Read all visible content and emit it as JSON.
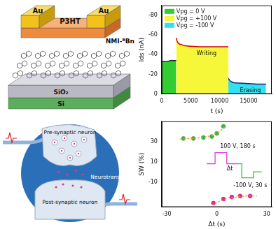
{
  "device_schematic": {
    "top_contacts": [
      "Au",
      "Au"
    ],
    "semiconductor": "P3HT",
    "molecular_layer": "NMI-ᴮBn",
    "dielectric": "SiO₂",
    "substrate": "Si"
  },
  "synapse_diagram": {
    "labels": [
      "Pre-synaptic neuron",
      "Neurotransmitter",
      "Post-synaptic neuron"
    ]
  },
  "chart_data": [
    {
      "type": "area",
      "x_label": "t (s)",
      "y_label": "Ids (nA)",
      "xlim": [
        0,
        19000
      ],
      "xticks": [
        0,
        5000,
        10000,
        15000
      ],
      "ylim": [
        0,
        -90
      ],
      "yticks": [
        -80,
        -60,
        -40,
        -20,
        0
      ],
      "grid": false,
      "legend": "upper left",
      "series": [
        {
          "name": "Vpg = 0 V",
          "color": "#33cc33",
          "x": [
            0,
            500,
            1000,
            1500,
            2000,
            2500
          ],
          "values": [
            -33,
            -33,
            -33,
            -34,
            -34,
            -34
          ]
        },
        {
          "name": "Vpg = +100 V",
          "color": "#f7f73a",
          "x": [
            2500,
            2700,
            3000,
            3500,
            4000,
            5000,
            6500,
            8000,
            10000,
            11500
          ],
          "values": [
            -57,
            -53,
            -51,
            -50,
            -49,
            -48.5,
            -48,
            -48,
            -48,
            -48
          ]
        },
        {
          "name": "Vpg = -100 V",
          "color": "#33e0f0",
          "x": [
            11500,
            11700,
            12000,
            12500,
            13500,
            15000,
            16500,
            18000
          ],
          "values": [
            -16,
            -14,
            -12.5,
            -11.5,
            -11,
            -10.5,
            -10,
            -10
          ]
        }
      ],
      "annotations": [
        {
          "text": "Writing",
          "x": 6000,
          "y": -41
        },
        {
          "text": "Erasing",
          "x": 13500,
          "y": -3
        }
      ]
    },
    {
      "type": "scatter",
      "x_label": "Δt (s)",
      "y_label": "SW (%)",
      "xlim": [
        -33,
        33
      ],
      "xticks": [
        -30,
        0,
        30
      ],
      "ylim": [
        -35,
        50
      ],
      "yticks": [
        -10,
        10,
        30
      ],
      "grid": false,
      "series": [
        {
          "type": "line",
          "line_style": "dashed",
          "color": "#f0a030",
          "x": [
            -22,
            -14,
            -8,
            -3,
            1,
            5
          ],
          "values": [
            32.5,
            33,
            34,
            36,
            39,
            45
          ]
        },
        {
          "type": "line",
          "line_style": "dashed",
          "color": "#f0a030",
          "x": [
            -3,
            2,
            7,
            12,
            18,
            24
          ],
          "values": [
            -33,
            -29,
            -26,
            -25,
            -24,
            -24
          ]
        },
        {
          "type": "scatter",
          "marker": "circle",
          "color": "#3cb043",
          "x": [
            -20,
            -14,
            -8,
            -3,
            0,
            4
          ],
          "values": [
            33,
            33,
            34,
            35,
            38,
            45
          ]
        },
        {
          "type": "scatter",
          "marker": "circle",
          "color": "#e0249a",
          "x": [
            -2,
            4,
            9,
            14,
            20
          ],
          "values": [
            -31,
            -27,
            -25,
            -24,
            -24
          ]
        },
        {
          "type": "line",
          "line_style": "solid",
          "color": "#e040e0",
          "x": [
            -6,
            -1,
            -1,
            6,
            6,
            12
          ],
          "values": [
            8,
            8,
            19,
            19,
            8,
            8
          ]
        },
        {
          "type": "line",
          "line_style": "solid",
          "color": "#2ecc40",
          "x": [
            12,
            15,
            15,
            22,
            22,
            27
          ],
          "values": [
            8,
            8,
            -6,
            -6,
            0,
            0
          ]
        }
      ],
      "annotations": [
        {
          "text": "100 V, 180 s",
          "x": 2,
          "y": 25
        },
        {
          "text": "Δt",
          "x": 6,
          "y": 3
        },
        {
          "text": "-100 V, 30 s",
          "x": 10,
          "y": -14
        }
      ]
    }
  ]
}
